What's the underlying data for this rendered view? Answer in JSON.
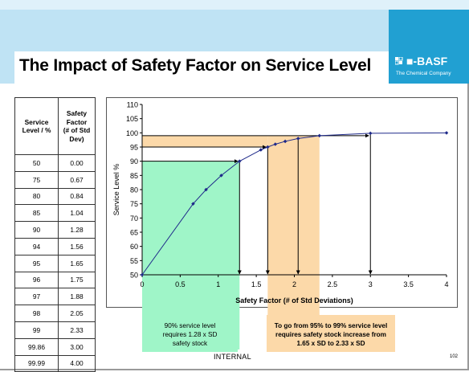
{
  "slide": {
    "title": "The Impact of Safety Factor on Service Level",
    "classification": "INTERNAL",
    "page_number": "102"
  },
  "logo": {
    "word": "BASF",
    "tagline": "The Chemical Company",
    "color": "#21a0d2"
  },
  "table": {
    "headers": [
      "Service Level / %",
      "Safety Factor (# of Std Dev)"
    ],
    "rows": [
      [
        "50",
        "0.00"
      ],
      [
        "75",
        "0.67"
      ],
      [
        "80",
        "0.84"
      ],
      [
        "85",
        "1.04"
      ],
      [
        "90",
        "1.28"
      ],
      [
        "94",
        "1.56"
      ],
      [
        "95",
        "1.65"
      ],
      [
        "96",
        "1.75"
      ],
      [
        "97",
        "1.88"
      ],
      [
        "98",
        "2.05"
      ],
      [
        "99",
        "2.33"
      ],
      [
        "99.86",
        "3.00"
      ],
      [
        "99.99",
        "4.00"
      ]
    ]
  },
  "notes": {
    "green_lines": [
      "90% service level",
      "requires 1.28 x SD",
      "safety stock"
    ],
    "orange_lines": [
      "To go from 95% to 99% service level",
      "requires safety stock increase from",
      "1.65 x SD to 2.33 x SD"
    ],
    "green_color": "#9ff5c8",
    "orange_color": "#fcd9a9"
  },
  "chart_data": {
    "type": "line",
    "title": "",
    "xlabel": "Safety Factor (# of Std Deviations)",
    "ylabel": "Service Level %",
    "xlim": [
      0,
      4
    ],
    "ylim": [
      50,
      110
    ],
    "xticks": [
      0,
      0.5,
      1,
      1.5,
      2,
      2.5,
      3,
      3.5,
      4
    ],
    "xtick_labels": [
      "0",
      "0.5",
      "1",
      "1.5",
      "2",
      "2.5",
      "3",
      "3.5",
      "4"
    ],
    "yticks": [
      50,
      55,
      60,
      65,
      70,
      75,
      80,
      85,
      90,
      95,
      100,
      105,
      110
    ],
    "grid": false,
    "series": [
      {
        "color": "#1f2a8a",
        "x": [
          0,
          0.67,
          0.84,
          1.04,
          1.28,
          1.56,
          1.65,
          1.75,
          1.88,
          2.05,
          2.33,
          3.0,
          4.0
        ],
        "y": [
          50,
          75,
          80,
          85,
          90,
          94,
          95,
          96,
          97,
          98,
          99,
          99.86,
          99.99
        ]
      }
    ],
    "annotations": {
      "green_region": {
        "x_to": 1.28,
        "y_to": 90,
        "color": "#9ff5c8"
      },
      "orange_region": {
        "x_from": 1.65,
        "x_to": 2.33,
        "y_from": 95,
        "y_to": 99,
        "color": "#fcd9a9"
      },
      "vertical_arrows_x": [
        1.28,
        1.65,
        2.05,
        3.0
      ],
      "horizontal_arrows": [
        {
          "y": 90,
          "x": 1.28
        },
        {
          "y": 95,
          "x": 1.65
        },
        {
          "y": 99,
          "x": 3.0
        }
      ]
    }
  }
}
